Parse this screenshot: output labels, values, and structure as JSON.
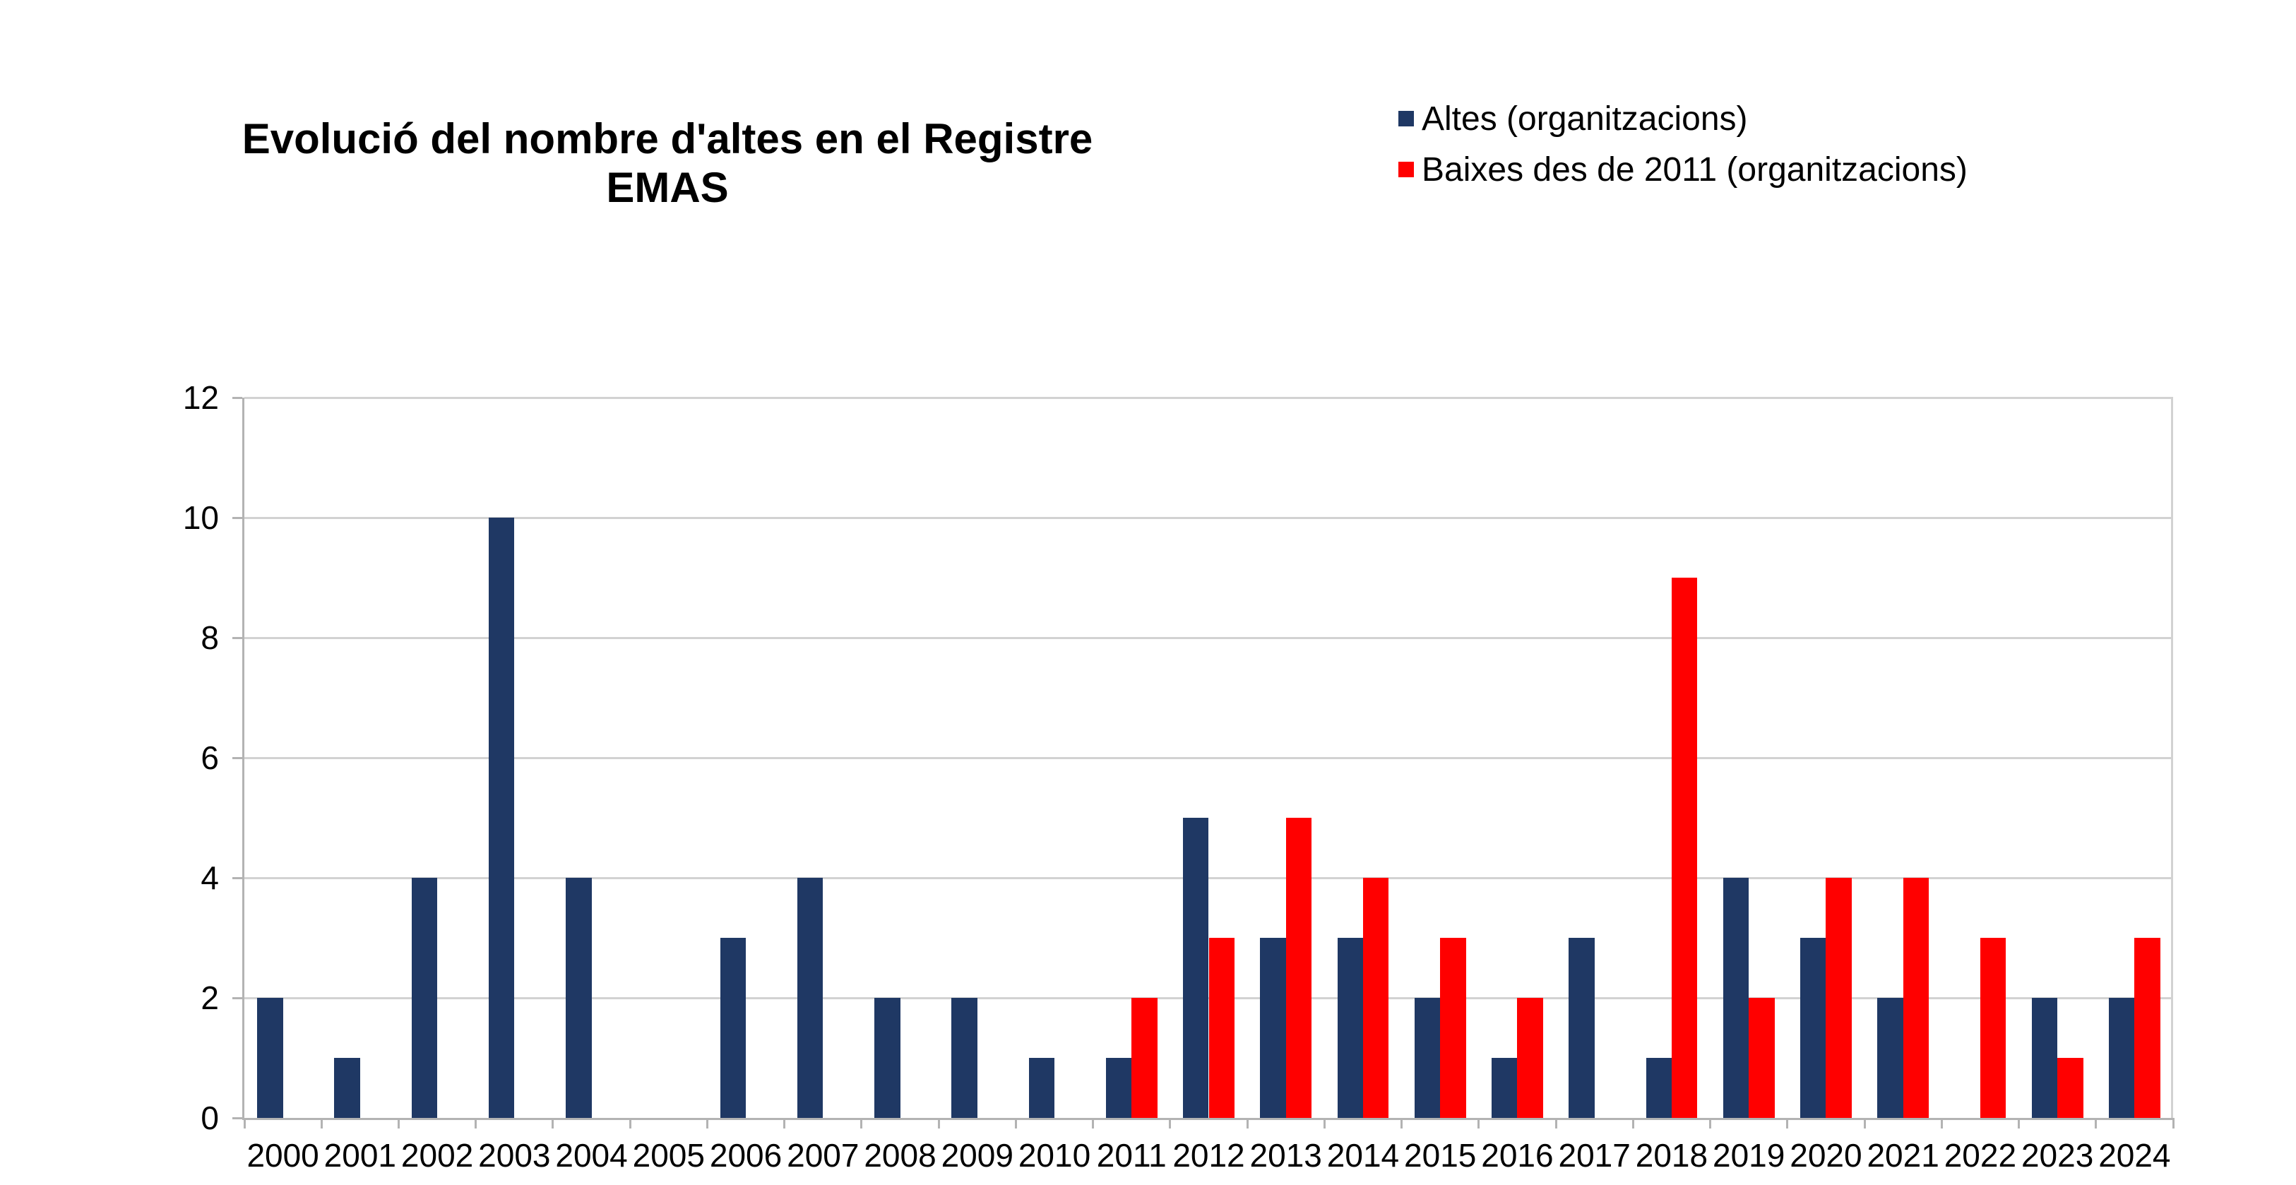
{
  "title": {
    "line1": "Evolució del nombre d'altes en el Registre",
    "line2": "EMAS"
  },
  "legend": [
    {
      "label": "Altes (organitzacions)",
      "color": "#1F3864"
    },
    {
      "label": "Baixes des de 2011 (organitzacions)",
      "color": "#FF0000"
    }
  ],
  "colors": {
    "bar_blue": "#1F3864",
    "bar_red": "#FF0000",
    "gridline": "#D2D2D2",
    "axis": "#B3B3B3",
    "text": "#000000",
    "background": "#FFFFFF"
  },
  "chart_data": {
    "type": "bar",
    "title": "Evolució del nombre d'altes en el Registre EMAS",
    "xlabel": "",
    "ylabel": "",
    "ylim": [
      0,
      12
    ],
    "yticks": [
      0,
      2,
      4,
      6,
      8,
      10,
      12
    ],
    "grid": true,
    "legend_position": "top-right",
    "categories": [
      2000,
      2001,
      2002,
      2003,
      2004,
      2005,
      2006,
      2007,
      2008,
      2009,
      2010,
      2011,
      2012,
      2013,
      2014,
      2015,
      2016,
      2017,
      2018,
      2019,
      2020,
      2021,
      2022,
      2023,
      2024
    ],
    "series": [
      {
        "name": "Altes (organitzacions)",
        "color": "#1F3864",
        "values": [
          2,
          1,
          4,
          10,
          4,
          0,
          3,
          4,
          2,
          2,
          1,
          1,
          5,
          3,
          3,
          2,
          1,
          3,
          1,
          4,
          3,
          2,
          0,
          2,
          2
        ]
      },
      {
        "name": "Baixes des de 2011 (organitzacions)",
        "color": "#FF0000",
        "values": [
          null,
          null,
          null,
          null,
          null,
          null,
          null,
          null,
          null,
          null,
          null,
          2,
          3,
          5,
          4,
          3,
          2,
          0,
          9,
          2,
          4,
          4,
          3,
          1,
          3
        ]
      }
    ]
  }
}
